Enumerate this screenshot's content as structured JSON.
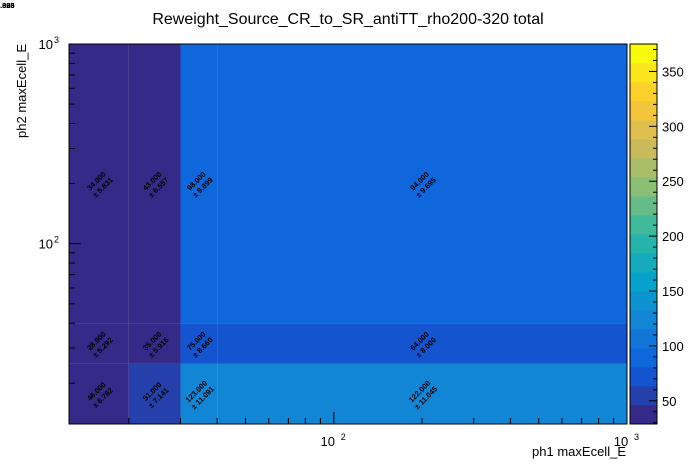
{
  "chart_data": {
    "type": "heatmap",
    "title": "Reweight_Source_CR_to_SR_antiTT_rho200-320 total",
    "xlabel": "ph1 maxEcell_E",
    "ylabel": "ph2 maxEcell_E",
    "x_scale": "log",
    "y_scale": "log",
    "x_tick_labels": [
      {
        "value": 100,
        "label": "10",
        "exp": "2"
      },
      {
        "value": 1000,
        "label": "10",
        "exp": "3"
      }
    ],
    "y_tick_labels": [
      {
        "value": 100,
        "label": "10",
        "exp": "2"
      },
      {
        "value": 1000,
        "label": "10",
        "exp": "3"
      }
    ],
    "x_edges": [
      12.5,
      20,
      30,
      40,
      1000
    ],
    "y_edges": [
      12.5,
      25,
      40,
      1000
    ],
    "cells": [
      {
        "xi": 0,
        "yi": 0,
        "value": 46.0,
        "text": "46.000",
        "err": "± 6.782"
      },
      {
        "xi": 1,
        "yi": 0,
        "value": 51.0,
        "text": "51.000",
        "err": "± 7.141"
      },
      {
        "xi": 2,
        "yi": 0,
        "value": 123.0,
        "text": "123.000",
        "err": "± 11.091"
      },
      {
        "xi": 3,
        "yi": 0,
        "value": 122.0,
        "text": "122.000",
        "err": "± 11.045"
      },
      {
        "xi": 4,
        "yi": 0,
        "value": 375.0,
        "text": "375.000",
        "err": "± 19.365"
      },
      {
        "xi": 0,
        "yi": 1,
        "value": 28.9,
        "text": "28.900",
        "err": "± 5.292"
      },
      {
        "xi": 1,
        "yi": 1,
        "value": 35.0,
        "text": "35.000",
        "err": "± 5.916"
      },
      {
        "xi": 2,
        "yi": 1,
        "value": 75.0,
        "text": "75.000",
        "err": "± 8.660"
      },
      {
        "xi": 3,
        "yi": 1,
        "value": 64.0,
        "text": "64.000",
        "err": "± 8.000"
      },
      {
        "xi": 4,
        "yi": 1,
        "value": 226.0,
        "text": "226.000",
        "err": "± 15.033"
      },
      {
        "xi": 0,
        "yi": 2,
        "value": 34.0,
        "text": "34.000",
        "err": "± 5.831"
      },
      {
        "xi": 1,
        "yi": 2,
        "value": 43.0,
        "text": "43.000",
        "err": "± 6.557"
      },
      {
        "xi": 2,
        "yi": 2,
        "value": 98.0,
        "text": "98.000",
        "err": "± 9.899"
      },
      {
        "xi": 3,
        "yi": 2,
        "value": 94.0,
        "text": "94.000",
        "err": "± 9.695"
      },
      {
        "xi": 4,
        "yi": 2,
        "value": 244.0,
        "text": "244.000",
        "err": "± 15.620"
      }
    ],
    "zlim": [
      28.9,
      375
    ],
    "colorbar_ticks": [
      50,
      100,
      150,
      200,
      250,
      300,
      350
    ],
    "colorbar_levels": 20,
    "colormap": [
      "#352a87",
      "#0f5cdd",
      "#1481d6",
      "#06a4ca",
      "#2eb7a4",
      "#87bf77",
      "#d1bb59",
      "#fec832",
      "#f9fb0e"
    ],
    "grid": false
  }
}
